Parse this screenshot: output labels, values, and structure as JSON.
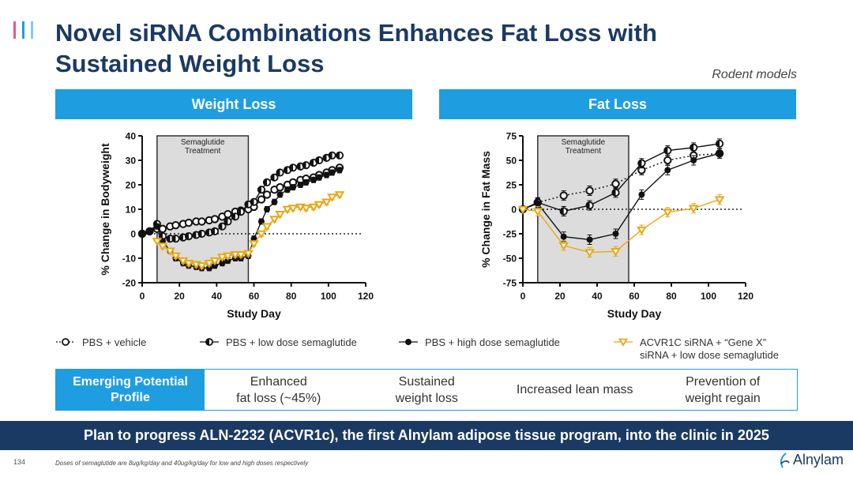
{
  "header": {
    "title": "Novel siRNA Combinations Enhances Fat Loss with Sustained Weight Loss",
    "subtitle": "Rodent models",
    "brand_colors": [
      "#e8578f",
      "#1e9ee0",
      "#1b3a63"
    ]
  },
  "panels": {
    "left_title": "Weight Loss",
    "right_title": "Fat Loss"
  },
  "chart_data": [
    {
      "type": "line",
      "title": "Weight Loss",
      "xlabel": "Study Day",
      "ylabel": "% Change in Bodyweight",
      "xlim": [
        0,
        120
      ],
      "ylim": [
        -20,
        40
      ],
      "xticks": [
        0,
        20,
        40,
        60,
        80,
        100,
        120
      ],
      "yticks": [
        -20,
        -10,
        0,
        10,
        20,
        30,
        40
      ],
      "shaded_region": {
        "x": [
          8,
          57
        ],
        "label_line1": "Semaglutide",
        "label_line2": "Treatment"
      },
      "reference_line_y": 0,
      "series": [
        {
          "name": "PBS + vehicle",
          "marker": "open-circle",
          "color": "#111111",
          "x": [
            0,
            4,
            8,
            11,
            15,
            18,
            22,
            25,
            29,
            32,
            36,
            39,
            43,
            46,
            50,
            53,
            57,
            60,
            64,
            67,
            71,
            74,
            78,
            81,
            85,
            88,
            92,
            95,
            99,
            102,
            106
          ],
          "y": [
            0,
            1,
            2,
            2,
            3,
            3.5,
            4,
            4.5,
            5,
            5,
            5.5,
            6,
            7,
            8,
            9,
            9.5,
            10,
            11,
            14,
            16,
            18,
            19,
            20,
            21,
            22,
            22.5,
            23,
            24,
            25,
            26,
            27
          ]
        },
        {
          "name": "PBS + low dose semaglutide",
          "marker": "half-circle",
          "color": "#111111",
          "x": [
            0,
            4,
            8,
            11,
            15,
            18,
            22,
            25,
            29,
            32,
            36,
            39,
            43,
            46,
            50,
            53,
            57,
            60,
            64,
            67,
            71,
            74,
            78,
            81,
            85,
            88,
            92,
            95,
            99,
            102,
            106
          ],
          "y": [
            0,
            1,
            4,
            -1,
            -2,
            -2,
            -1.5,
            -1,
            -0.5,
            0,
            0.5,
            1,
            3,
            5,
            7,
            9,
            12,
            13,
            18,
            21,
            23,
            25,
            26,
            27,
            27.5,
            28,
            29,
            30,
            31,
            32,
            32
          ]
        },
        {
          "name": "PBS + high dose semaglutide",
          "marker": "filled-circle",
          "color": "#111111",
          "x": [
            0,
            4,
            8,
            11,
            15,
            18,
            22,
            25,
            29,
            32,
            36,
            39,
            43,
            46,
            50,
            53,
            57,
            60,
            64,
            67,
            71,
            74,
            78,
            81,
            85,
            88,
            92,
            95,
            99,
            102,
            106
          ],
          "y": [
            0,
            1,
            3,
            -3,
            -7,
            -10,
            -12,
            -13,
            -13.5,
            -14,
            -14,
            -13,
            -12,
            -11,
            -10,
            -10,
            -9,
            -2,
            5,
            10,
            13,
            16,
            18,
            19,
            20,
            21,
            22,
            23,
            24,
            25,
            26
          ]
        },
        {
          "name": "ACVR1C siRNA + “Gene X” siRNA + low dose semaglutide",
          "marker": "open-triangle-down",
          "color": "#e6a817",
          "x": [
            8,
            11,
            15,
            18,
            22,
            25,
            29,
            32,
            36,
            39,
            43,
            46,
            50,
            53,
            57,
            60,
            64,
            67,
            71,
            74,
            78,
            81,
            85,
            88,
            92,
            95,
            99,
            102,
            106
          ],
          "y": [
            -3,
            -5,
            -7,
            -9,
            -11,
            -12,
            -12.5,
            -13,
            -12,
            -11,
            -9.5,
            -9,
            -8.5,
            -8.5,
            -8,
            -4,
            0,
            3,
            6,
            8,
            10,
            10.5,
            11,
            10.5,
            11,
            12,
            13,
            15,
            16
          ]
        }
      ]
    },
    {
      "type": "line",
      "title": "Fat Loss",
      "xlabel": "Study Day",
      "ylabel": "% Change in Fat Mass",
      "xlim": [
        0,
        120
      ],
      "ylim": [
        -75,
        75
      ],
      "xticks": [
        0,
        20,
        40,
        60,
        80,
        100,
        120
      ],
      "yticks": [
        -75,
        -50,
        -25,
        0,
        25,
        50,
        75
      ],
      "shaded_region": {
        "x": [
          8,
          57
        ],
        "label_line1": "Semaglutide",
        "label_line2": "Treatment"
      },
      "reference_line_y": 0,
      "series": [
        {
          "name": "PBS + vehicle",
          "marker": "open-circle",
          "color": "#111111",
          "dashed": true,
          "x": [
            0,
            8,
            22,
            36,
            50,
            64,
            78,
            92,
            106
          ],
          "y": [
            0,
            7,
            14,
            19,
            26,
            40,
            50,
            55,
            57
          ]
        },
        {
          "name": "PBS + low dose semaglutide",
          "marker": "half-circle",
          "color": "#111111",
          "x": [
            0,
            8,
            22,
            36,
            50,
            64,
            78,
            92,
            106
          ],
          "y": [
            0,
            7,
            -2,
            4,
            17,
            47,
            60,
            63,
            67
          ]
        },
        {
          "name": "PBS + high dose semaglutide",
          "marker": "filled-circle",
          "color": "#111111",
          "x": [
            0,
            8,
            22,
            36,
            50,
            64,
            78,
            92,
            106
          ],
          "y": [
            0,
            6,
            -28,
            -31,
            -25,
            15,
            40,
            50,
            57
          ]
        },
        {
          "name": "ACVR1C siRNA + “Gene X” siRNA + low dose semaglutide",
          "marker": "open-triangle-down",
          "color": "#e6a817",
          "x": [
            0,
            8,
            22,
            36,
            50,
            64,
            78,
            92,
            106
          ],
          "y": [
            0,
            -2,
            -37,
            -44,
            -43,
            -21,
            -3,
            1,
            10
          ]
        }
      ]
    }
  ],
  "legend": [
    {
      "marker": "open-circle",
      "label": "PBS + vehicle"
    },
    {
      "marker": "half-circle",
      "label": "PBS + low dose semaglutide"
    },
    {
      "marker": "filled-circle",
      "label": "PBS + high dose semaglutide"
    },
    {
      "marker": "open-triangle-down",
      "label_line1": "ACVR1C siRNA + “Gene X”",
      "label_line2": "siRNA + low dose semaglutide"
    }
  ],
  "profile": {
    "header_line1": "Emerging Potential",
    "header_line2": "Profile",
    "items": [
      {
        "line1": "Enhanced",
        "line2": "fat loss (~45%)"
      },
      {
        "line1": "Sustained",
        "line2": "weight loss"
      },
      {
        "line1": "Increased lean mass",
        "line2": ""
      },
      {
        "line1": "Prevention of",
        "line2": "weight regain"
      }
    ]
  },
  "banner": "Plan to progress ALN-2232 (ACVR1c), the first Alnylam adipose tissue program, into the clinic in 2025",
  "footer": {
    "page_number": "134",
    "footnote": "Doses of semaglutide are 8ug/kg/day and 40ug/kg/day for low and high doses respectively",
    "brand_name": "Alnylam"
  }
}
